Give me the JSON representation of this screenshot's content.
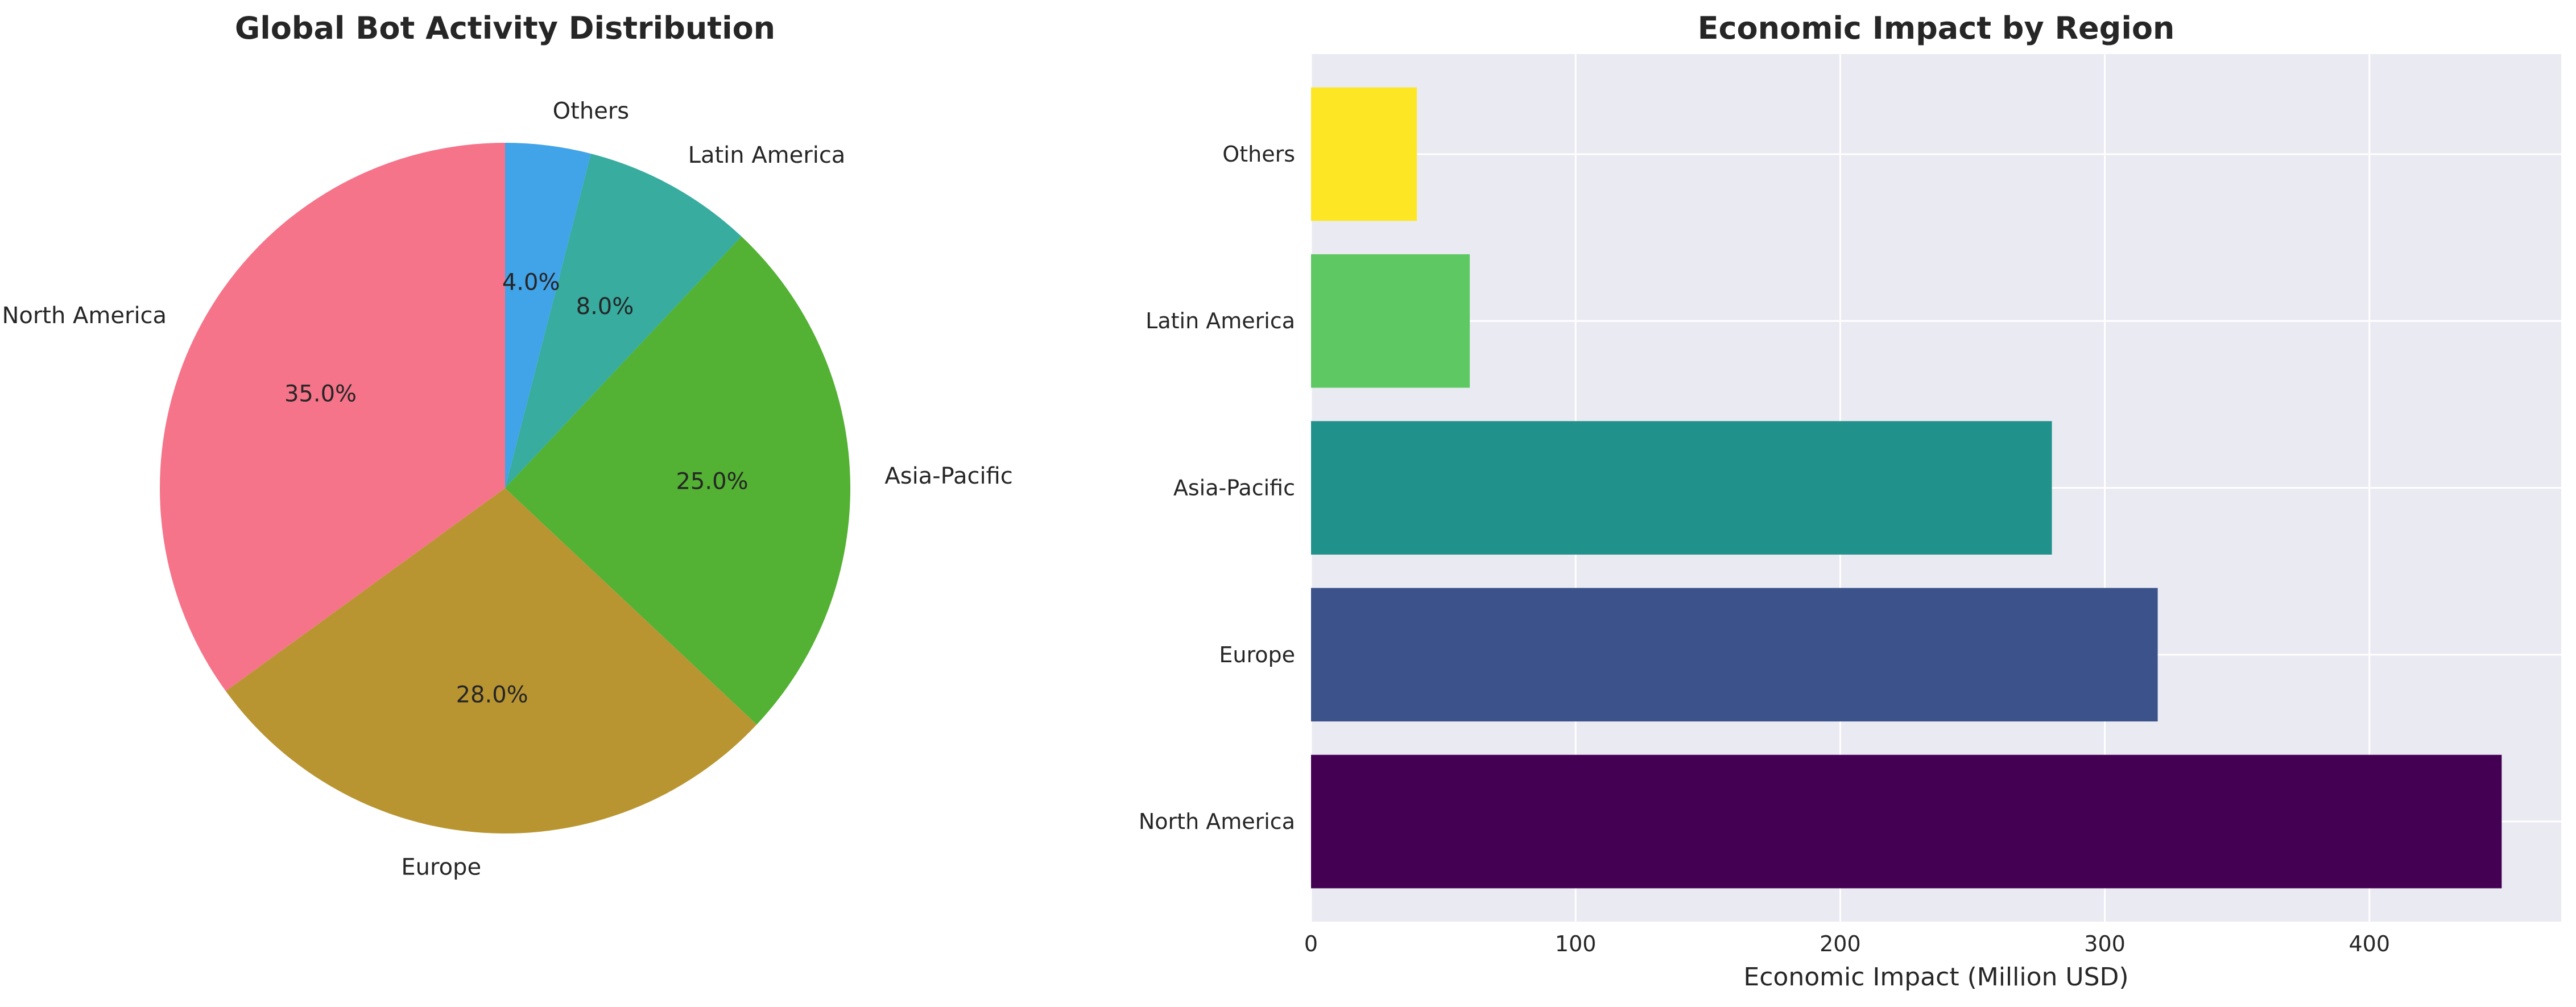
{
  "chart_data": [
    {
      "type": "pie",
      "title": "Global Bot Activity Distribution",
      "categories": [
        "North America",
        "Europe",
        "Asia-Pacific",
        "Latin America",
        "Others"
      ],
      "values": [
        35.0,
        28.0,
        25.0,
        8.0,
        4.0
      ],
      "value_labels": [
        "35.0%",
        "28.0%",
        "25.0%",
        "8.0%",
        "4.0%"
      ],
      "colors": [
        "#f6748a",
        "#b99532",
        "#53b133",
        "#37ac9f",
        "#41a3e8"
      ],
      "start_angle_deg": 90,
      "direction": "counterclockwise"
    },
    {
      "type": "bar",
      "orientation": "horizontal",
      "title": "Economic Impact by Region",
      "categories": [
        "North America",
        "Europe",
        "Asia-Pacific",
        "Latin America",
        "Others"
      ],
      "values": [
        450,
        320,
        280,
        60,
        40
      ],
      "colors": [
        "#440154",
        "#3b528b",
        "#21918c",
        "#5ec962",
        "#fde725"
      ],
      "xlabel": "Economic Impact (Million USD)",
      "ylabel": "",
      "xlim": [
        0,
        472.5
      ],
      "xticks": [
        0,
        100,
        200,
        300,
        400
      ],
      "xtick_labels": [
        "0",
        "100",
        "200",
        "300",
        "400"
      ],
      "grid": true,
      "background": "#eaeaf2"
    }
  ]
}
